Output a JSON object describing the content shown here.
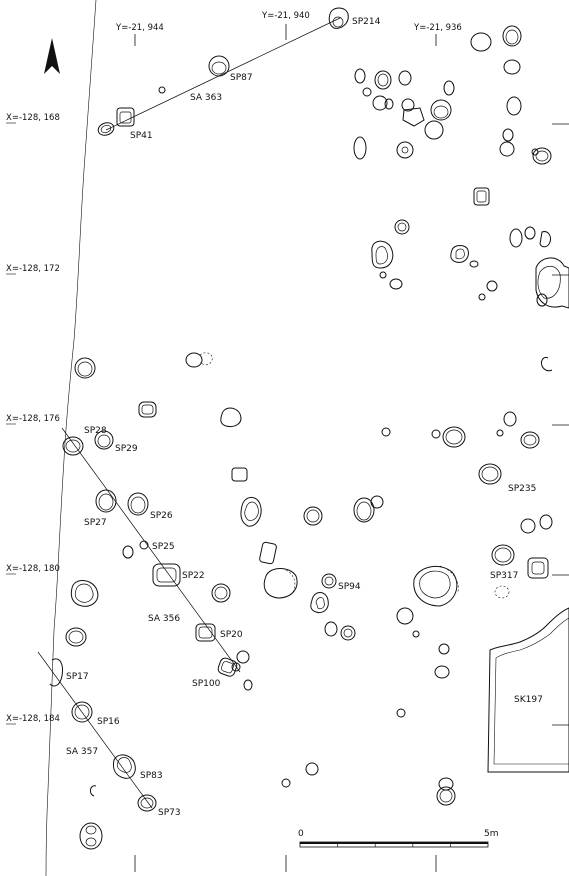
{
  "grid_labels": {
    "y_top_left": "Y=-21, 944",
    "y_top_mid": "Y=-21, 940",
    "y_top_right": "Y=-21, 936",
    "x1": "X=-128, 168",
    "x2": "X=-128, 172",
    "x3": "X=-128, 176",
    "x4": "X=-128, 180",
    "x5": "X=-128, 184"
  },
  "alignments": {
    "sa363": "SA 363",
    "sa356": "SA 356",
    "sa357": "SA 357"
  },
  "features": {
    "sp214": "SP214",
    "sp87": "SP87",
    "sp41": "SP41",
    "sp28": "SP28",
    "sp29": "SP29",
    "sp27": "SP27",
    "sp26": "SP26",
    "sp25": "SP25",
    "sp22": "SP22",
    "sp20": "SP20",
    "sp100": "SP100",
    "sp17": "SP17",
    "sp16": "SP16",
    "sp83": "SP83",
    "sp73": "SP73",
    "sp94": "SP94",
    "sp235": "SP235",
    "sp317": "SP317",
    "sk197": "SK197"
  },
  "scale_bar": {
    "start": "0",
    "end": "5m"
  },
  "north_arrow": "north-arrow-icon"
}
